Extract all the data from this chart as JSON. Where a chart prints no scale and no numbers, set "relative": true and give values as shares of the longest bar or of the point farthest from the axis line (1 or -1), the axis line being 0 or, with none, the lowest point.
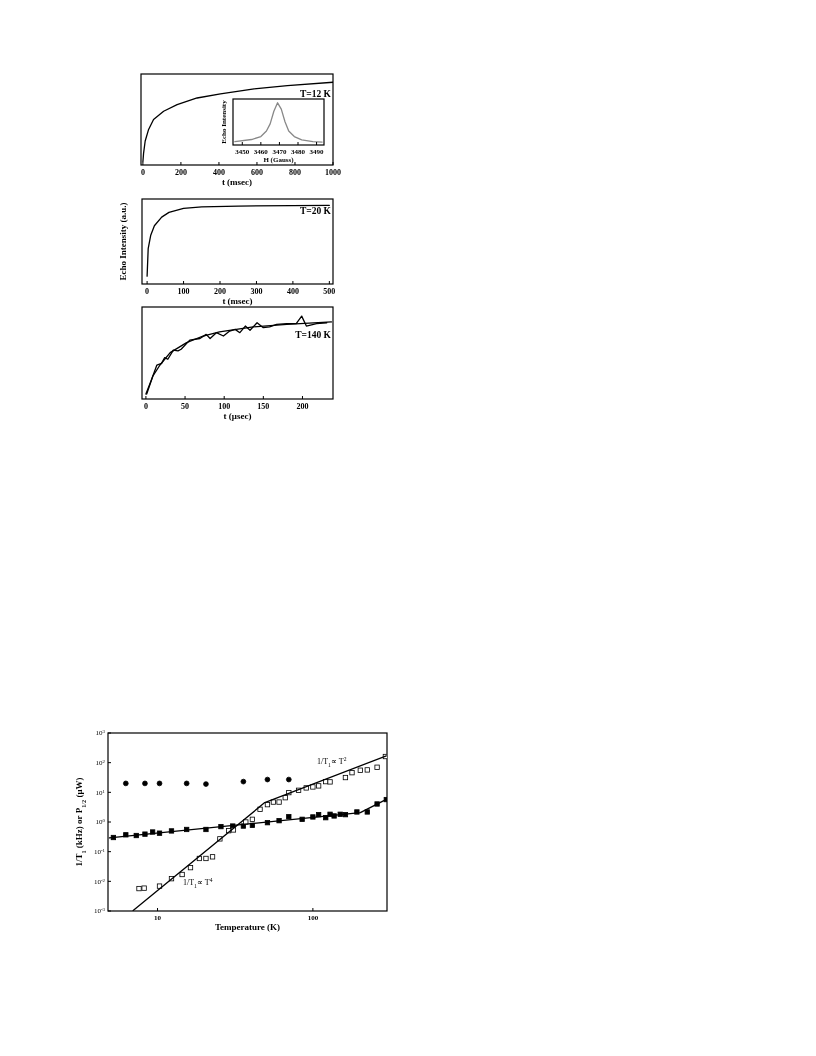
{
  "chart_data": [
    {
      "type": "line",
      "relative": true,
      "xlim": [
        -10,
        1000
      ],
      "xticks": [
        0,
        200,
        400,
        600,
        800,
        1000
      ],
      "xlabel": "t (msec)",
      "tick_labels": "x",
      "annotations": [
        "T=12 K"
      ],
      "series": [
        {
          "color": "#000000",
          "x": [
            0,
            3.5,
            12,
            30,
            56,
            109,
            180,
            285,
            408,
            585,
            760,
            1000
          ],
          "values": [
            0.04,
            0.14,
            0.29,
            0.43,
            0.55,
            0.65,
            0.73,
            0.81,
            0.86,
            0.92,
            0.96,
            1.0
          ]
        }
      ]
    },
    {
      "type": "line",
      "relative": true,
      "xlim": [
        3445,
        3494
      ],
      "xticks": [
        3450,
        3460,
        3470,
        3480,
        3490
      ],
      "xlabel": "H (Gauss)",
      "ylabel": "Echo Intensity",
      "tick_labels": "x",
      "series": [
        {
          "color": "#888888",
          "x": [
            3446,
            3455,
            3460,
            3463,
            3465,
            3467,
            3469,
            3471,
            3473,
            3475,
            3478,
            3482,
            3488,
            3493
          ],
          "values": [
            0.08,
            0.13,
            0.2,
            0.33,
            0.5,
            0.8,
            1.0,
            0.85,
            0.55,
            0.33,
            0.2,
            0.12,
            0.08,
            0.07
          ]
        }
      ]
    },
    {
      "type": "line",
      "relative": true,
      "xlim": [
        -14,
        510
      ],
      "xticks": [
        0,
        100,
        200,
        300,
        400,
        500
      ],
      "xlabel": "t (msec)",
      "ylabel": "Echo Intensity (a.u.)",
      "tick_labels": "x",
      "annotations": [
        "T=20 K"
      ],
      "series": [
        {
          "color": "#000000",
          "x": [
            0,
            3,
            10,
            20,
            40,
            60,
            100,
            150,
            250,
            500
          ],
          "values": [
            0.1,
            0.45,
            0.62,
            0.74,
            0.85,
            0.91,
            0.96,
            0.98,
            0.99,
            1.0
          ]
        }
      ]
    },
    {
      "type": "line",
      "relative": true,
      "xlim": [
        -5,
        239
      ],
      "xticks": [
        0,
        50,
        100,
        150,
        200
      ],
      "xlabel": "t (μsec)",
      "tick_labels": "x",
      "annotations": [
        "T=140 K"
      ],
      "series": [
        {
          "color": "#000000",
          "x": [
            0,
            7,
            14,
            20,
            24,
            28,
            35,
            41,
            45,
            56,
            69,
            77,
            82,
            90,
            99,
            107,
            114,
            120,
            127,
            133,
            142,
            150,
            158,
            167,
            180,
            192,
            199,
            205,
            218,
            231
          ],
          "values": [
            0.06,
            0.23,
            0.41,
            0.43,
            0.5,
            0.48,
            0.59,
            0.58,
            0.6,
            0.71,
            0.73,
            0.78,
            0.73,
            0.8,
            0.76,
            0.82,
            0.84,
            0.8,
            0.88,
            0.83,
            0.92,
            0.86,
            0.87,
            0.9,
            0.91,
            0.91,
            1.0,
            0.88,
            0.91,
            0.92
          ]
        },
        {
          "color": "#000000",
          "x": [
            1,
            9,
            18,
            31,
            52,
            73,
            94,
            137,
            180,
            237
          ],
          "values": [
            0.06,
            0.28,
            0.41,
            0.56,
            0.68,
            0.76,
            0.81,
            0.87,
            0.9,
            0.93
          ]
        }
      ]
    },
    {
      "type": "scatter",
      "log": "xy",
      "xlim": [
        4.8,
        300
      ],
      "ylim": [
        0.001,
        1000
      ],
      "xticks": [
        {
          "value": 10,
          "label": "10"
        },
        {
          "value": 100,
          "label": "100"
        }
      ],
      "yticks": [
        {
          "value": 0.001,
          "label": "10$^{-3}$"
        },
        {
          "value": 0.01,
          "label": "10$^{-2}$"
        },
        {
          "value": 0.1,
          "label": "10$^{-1}$"
        },
        {
          "value": 1,
          "label": "10$^{0}$"
        },
        {
          "value": 10,
          "label": "10$^{1}$"
        },
        {
          "value": 100,
          "label": "10$^{2}$"
        },
        {
          "value": 1000,
          "label": "10$^{3}$"
        }
      ],
      "xlabel": "Temperature (K)",
      "ylabel": "1/T$_{1}$ (kHz) or P$_{1/2}$ (μW)",
      "annotations": [
        "1/T$_{1}$∝ T$^{2}$",
        "1/T$_{1}$∝ T$^{4}$"
      ],
      "series": [
        {
          "marker": "circle",
          "color": "#000000",
          "x": [
            6.25,
            8.3,
            10.3,
            15.4,
            20.5,
            35.7,
            51,
            70
          ],
          "values": [
            20,
            20,
            20,
            20,
            19,
            23,
            27,
            27
          ]
        },
        {
          "marker": "square",
          "color": "#000000",
          "x": [
            5.2,
            6.25,
            7.3,
            8.3,
            9.3,
            10.3,
            12.3,
            15.4,
            20.5,
            25.6,
            30.5,
            35.7,
            40.8,
            51,
            60.6,
            70,
            85.3,
            100,
            108.9,
            121,
            129,
            137,
            150,
            162,
            192,
            224,
            259,
            297
          ],
          "values": [
            0.3,
            0.37,
            0.35,
            0.39,
            0.46,
            0.42,
            0.5,
            0.56,
            0.56,
            0.7,
            0.73,
            0.73,
            0.77,
            0.95,
            1.11,
            1.51,
            1.23,
            1.48,
            1.77,
            1.4,
            1.82,
            1.6,
            1.82,
            1.77,
            2.18,
            2.18,
            4.05,
            5.7
          ]
        },
        {
          "marker": "square",
          "color": "#ffffff",
          "x": [
            7.6,
            8.2,
            10.3,
            12.3,
            14.4,
            16.3,
            18.6,
            20.5,
            22.6,
            25.2,
            28.7,
            30.8,
            37,
            40.8,
            45.7,
            51,
            55.7,
            60.6,
            66.4,
            70,
            80.9,
            90.6,
            100,
            108.9,
            121,
            129,
            162,
            178.6,
            202,
            224,
            259,
            293
          ],
          "values": [
            0.0057,
            0.0059,
            0.0069,
            0.0123,
            0.017,
            0.029,
            0.059,
            0.059,
            0.067,
            0.27,
            0.51,
            0.54,
            1.0,
            1.23,
            2.68,
            3.85,
            4.7,
            4.7,
            6.6,
            9.8,
            11.7,
            14.1,
            15.2,
            16.5,
            23,
            22.5,
            31.5,
            46,
            55.6,
            57,
            70,
            161
          ]
        },
        {
          "type": "line",
          "marker": "none",
          "color": "#000000",
          "x": [
            4.9,
            202,
            297
          ],
          "values": [
            0.29,
            2.07,
            5.8
          ]
        },
        {
          "type": "line",
          "marker": "none",
          "color": "#000000",
          "x": [
            6.97,
            49,
            297
          ],
          "values": [
            0.00104,
            4.5,
            170
          ]
        }
      ]
    }
  ]
}
